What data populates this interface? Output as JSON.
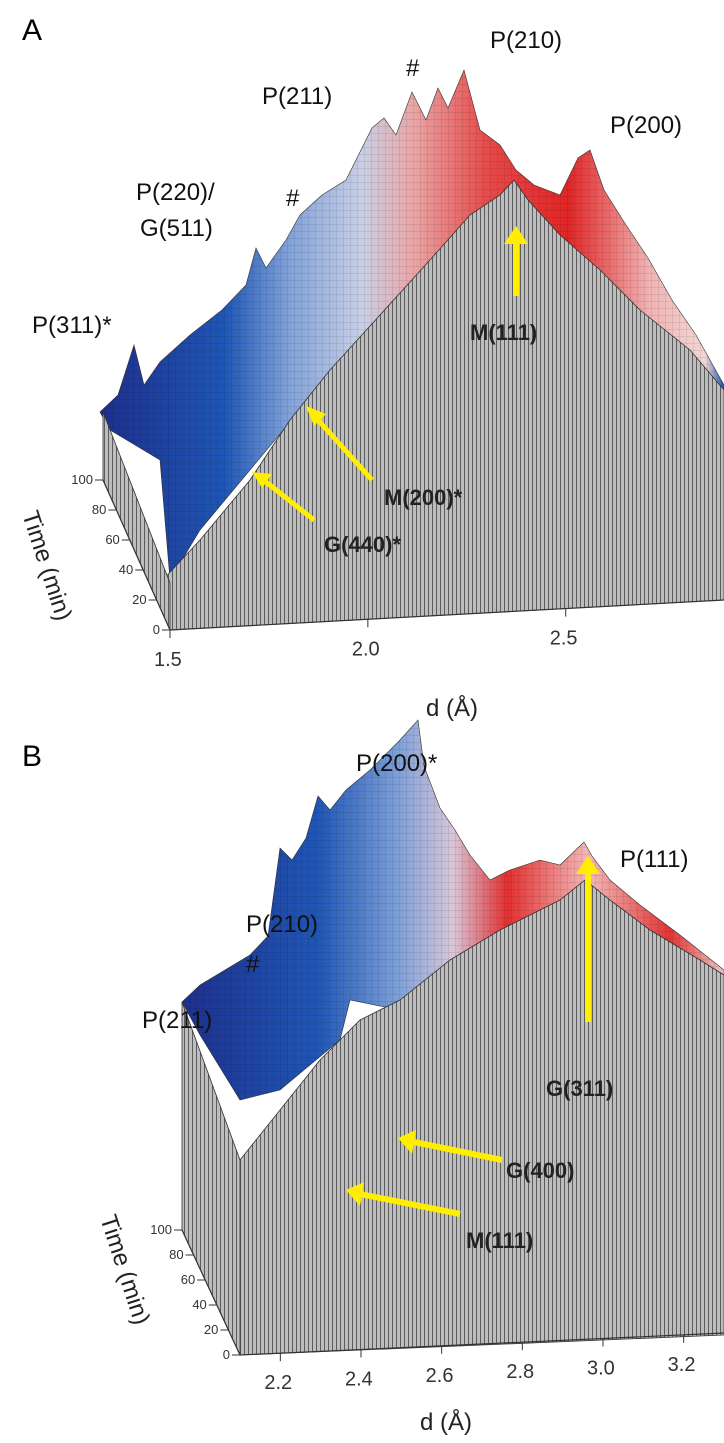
{
  "panels": [
    {
      "letter": "A",
      "x_label": "d (Å)",
      "time_label": "Time (min)",
      "peaks": [
        "P(210)",
        "P(200)",
        "P(211)",
        "#",
        "P(220)/",
        "G(511)",
        "#",
        "P(311)*"
      ],
      "annotations": [
        "M(111)",
        "M(200)*",
        "G(440)*"
      ]
    },
    {
      "letter": "B",
      "x_label": "d (Å)",
      "time_label": "Time (min)",
      "peaks": [
        "P(200)*",
        "P(111)",
        "P(210)",
        "#",
        "P(211)"
      ],
      "annotations": [
        "G(311)",
        "G(400)",
        "M(111)"
      ]
    }
  ],
  "chart_data": [
    {
      "type": "surface",
      "panel": "A",
      "xlabel": "d (Å)",
      "ylabel": "Time (min)",
      "x_ticks": [
        1.5,
        2.0,
        2.5
      ],
      "x_tick_labels": [
        "1.5",
        "2.0",
        "2.5"
      ],
      "time_ticks": [
        0,
        20,
        40,
        60,
        80,
        100
      ],
      "time_tick_labels": [
        "0",
        "20",
        "40",
        "60",
        "80",
        "100"
      ],
      "xlim": [
        1.5,
        2.9
      ],
      "ylim": [
        0,
        100
      ],
      "peak_labels": [
        "P(210)",
        "P(200)",
        "P(211)",
        "#",
        "P(220)/G(511)",
        "#",
        "P(311)*"
      ],
      "annotations": [
        "M(111)",
        "M(200)*",
        "G(440)*"
      ],
      "colormap": [
        "#1e2f8c",
        "#1f56b5",
        "#7fa0d8",
        "#e9a7a7",
        "#e02525"
      ]
    },
    {
      "type": "surface",
      "panel": "B",
      "xlabel": "d (Å)",
      "ylabel": "Time (min)",
      "x_ticks": [
        2.2,
        2.4,
        2.6,
        2.8,
        3.0,
        3.2
      ],
      "x_tick_labels": [
        "2.2",
        "2.4",
        "2.6",
        "2.8",
        "3.0",
        "3.2"
      ],
      "time_ticks": [
        0,
        20,
        40,
        60,
        80,
        100
      ],
      "time_tick_labels": [
        "0",
        "20",
        "40",
        "60",
        "80",
        "100"
      ],
      "xlim": [
        2.1,
        3.3
      ],
      "ylim": [
        0,
        100
      ],
      "peak_labels": [
        "P(200)*",
        "P(111)",
        "P(210)",
        "#",
        "P(211)"
      ],
      "annotations": [
        "G(311)",
        "G(400)",
        "M(111)"
      ],
      "colormap": [
        "#1e2f8c",
        "#1f56b5",
        "#7fa0d8",
        "#e23030",
        "#f2b9b9"
      ]
    }
  ]
}
